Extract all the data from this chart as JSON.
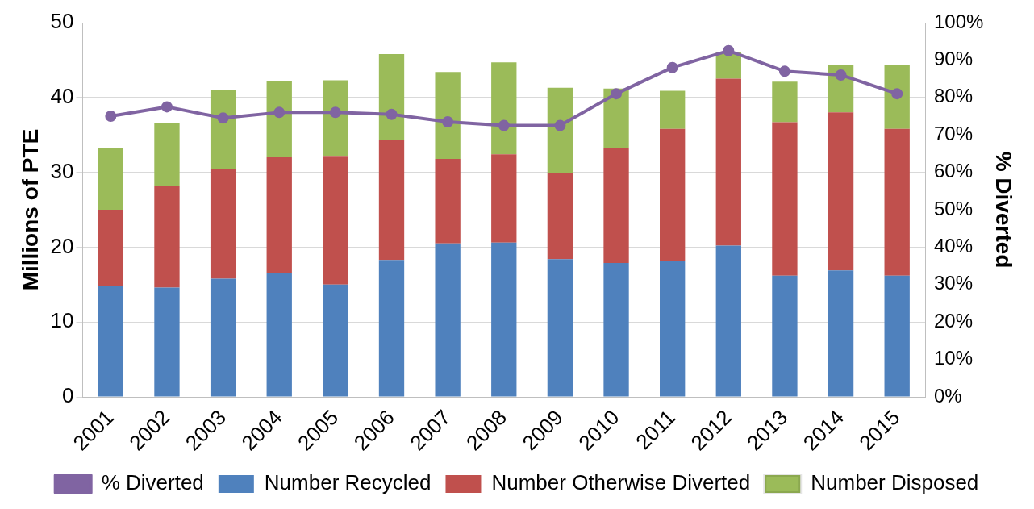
{
  "chart_data": {
    "type": "bar",
    "stacked": true,
    "ylabel": "Millions of PTE",
    "y2label": "% Diverted",
    "categories": [
      "2001",
      "2002",
      "2003",
      "2004",
      "2005",
      "2006",
      "2007",
      "2008",
      "2009",
      "2010",
      "2011",
      "2012",
      "2013",
      "2014",
      "2015"
    ],
    "series": [
      {
        "name": "Number Recycled",
        "color": "#4f81bd",
        "values": [
          14.8,
          14.6,
          15.8,
          16.5,
          15.0,
          18.3,
          20.5,
          20.6,
          18.4,
          17.9,
          18.1,
          20.2,
          16.2,
          16.9,
          16.2
        ]
      },
      {
        "name": "Number Otherwise Diverted",
        "color": "#c0504d",
        "values": [
          10.2,
          13.6,
          14.7,
          15.5,
          17.1,
          16.0,
          11.3,
          11.8,
          11.5,
          15.4,
          17.7,
          22.3,
          20.5,
          21.1,
          19.6
        ]
      },
      {
        "name": "Number Disposed",
        "color": "#9bbb59",
        "values": [
          8.3,
          8.4,
          10.5,
          10.2,
          10.2,
          11.5,
          11.6,
          12.3,
          11.4,
          7.9,
          5.1,
          3.5,
          5.4,
          6.3,
          8.5
        ]
      },
      {
        "name": "% Diverted",
        "type": "line",
        "axis": "y2",
        "marker": "circle",
        "color": "#8064a2",
        "values": [
          75,
          77.5,
          74.5,
          76,
          76,
          75.5,
          73.5,
          72.5,
          72.5,
          81,
          88,
          92.5,
          87,
          86,
          81
        ]
      }
    ],
    "ylim": [
      0,
      50
    ],
    "yticks": [
      0,
      10,
      20,
      30,
      40,
      50
    ],
    "y2lim": [
      0,
      100
    ],
    "y2ticks": [
      {
        "value": 0,
        "label": "0%"
      },
      {
        "value": 10,
        "label": "10%"
      },
      {
        "value": 20,
        "label": "20%"
      },
      {
        "value": 30,
        "label": "30%"
      },
      {
        "value": 40,
        "label": "40%"
      },
      {
        "value": 50,
        "label": "50%"
      },
      {
        "value": 60,
        "label": "60%"
      },
      {
        "value": 70,
        "label": "70%"
      },
      {
        "value": 80,
        "label": "80%"
      },
      {
        "value": 90,
        "label": "90%"
      },
      {
        "value": 100,
        "label": "100%"
      }
    ],
    "grid": "y",
    "legend": "bottom"
  }
}
